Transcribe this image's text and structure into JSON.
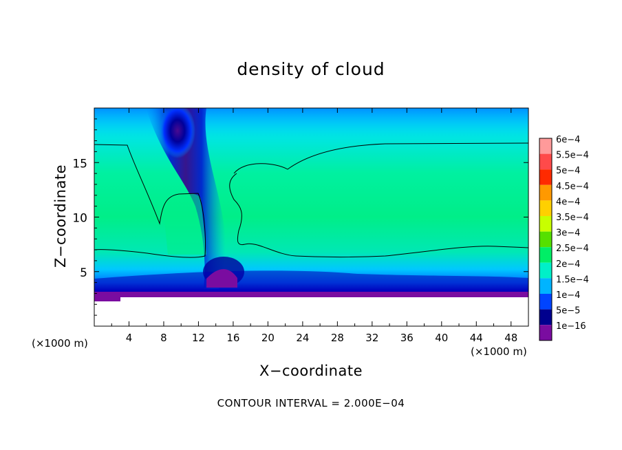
{
  "chart_data": {
    "type": "heatmap",
    "title": "density of cloud",
    "xlabel": "X−coordinate",
    "ylabel": "Z−coordinate",
    "x_unit_left": "(×1000 m)",
    "x_unit_right": "(×1000 m)",
    "x_range": [
      0,
      50
    ],
    "y_range": [
      0,
      20
    ],
    "x_ticks": [
      "4",
      "8",
      "12",
      "16",
      "20",
      "24",
      "28",
      "32",
      "36",
      "40",
      "44",
      "48"
    ],
    "y_ticks": [
      "5",
      "10",
      "15"
    ],
    "colorbar": {
      "labels": [
        "6e−4",
        "5.5e−4",
        "5e−4",
        "4.5e−4",
        "4e−4",
        "3.5e−4",
        "3e−4",
        "2.5e−4",
        "2e−4",
        "1.5e−4",
        "1e−4",
        "5e−5",
        "1e−16"
      ],
      "colors": [
        "#ff9a9a",
        "#ff4a4a",
        "#ff2a00",
        "#ff9900",
        "#ffd000",
        "#c8ff00",
        "#55e000",
        "#00ee66",
        "#00f0c8",
        "#00b4ff",
        "#0044ff",
        "#00008e",
        "#7a0ca0"
      ]
    },
    "contour_levels": [
      0.0002
    ],
    "grid": false,
    "legend_position": "right"
  },
  "footer": {
    "contour_interval": "CONTOUR INTERVAL = 2.000E−04"
  }
}
